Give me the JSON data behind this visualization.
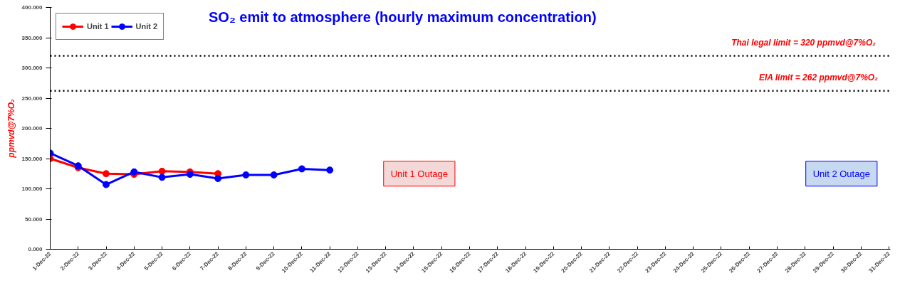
{
  "chart_data": {
    "type": "line",
    "title": "SO₂ emit to atmosphere (hourly maximum concentration)",
    "ylabel": "ppmvd@7%O₂",
    "categories": [
      "1-Dec-22",
      "2-Dec-22",
      "3-Dec-22",
      "4-Dec-22",
      "5-Dec-22",
      "6-Dec-22",
      "7-Dec-22",
      "8-Dec-22",
      "9-Dec-22",
      "10-Dec-22",
      "11-Dec-22",
      "12-Dec-22",
      "13-Dec-22",
      "14-Dec-22",
      "15-Dec-22",
      "16-Dec-22",
      "17-Dec-22",
      "18-Dec-22",
      "19-Dec-22",
      "20-Dec-22",
      "21-Dec-22",
      "22-Dec-22",
      "23-Dec-22",
      "24-Dec-22",
      "25-Dec-22",
      "26-Dec-22",
      "27-Dec-22",
      "28-Dec-22",
      "29-Dec-22",
      "30-Dec-22",
      "31-Dec-22"
    ],
    "series": [
      {
        "name": "Unit 1",
        "color": "#ff0000",
        "values": [
          150,
          135,
          125,
          124,
          129,
          128,
          125,
          null,
          null,
          null,
          null,
          null,
          null,
          null,
          null,
          null,
          null,
          null,
          null,
          null,
          null,
          null,
          null,
          null,
          null,
          null,
          null,
          null,
          null,
          null,
          null
        ]
      },
      {
        "name": "Unit 2",
        "color": "#0000ff",
        "values": [
          159,
          138,
          107,
          128,
          119,
          124,
          117,
          123,
          123,
          133,
          131,
          null,
          null,
          null,
          null,
          null,
          null,
          null,
          null,
          null,
          null,
          null,
          null,
          null,
          null,
          null,
          null,
          null,
          null,
          null,
          null
        ]
      }
    ],
    "ylim": [
      0,
      400
    ],
    "yticks": [
      {
        "value": 0,
        "label": "0.000"
      },
      {
        "value": 50,
        "label": "50.000"
      },
      {
        "value": 100,
        "label": "100.000"
      },
      {
        "value": 150,
        "label": "150.000"
      },
      {
        "value": 200,
        "label": "200.000"
      },
      {
        "value": 250,
        "label": "250.000"
      },
      {
        "value": 300,
        "label": "300.000"
      },
      {
        "value": 350,
        "label": "350.000"
      },
      {
        "value": 400,
        "label": "400.000"
      }
    ],
    "ref_lines": [
      {
        "axis": "y",
        "value": 320,
        "label": "Thai legal  limit  = 320 ppmvd@7%O₂",
        "color": "#000000",
        "line_style": "dotted"
      },
      {
        "axis": "y",
        "value": 262,
        "label": "EIA limit  = 262 ppmvd@7%O₂",
        "color": "#000000",
        "line_style": "dotted"
      }
    ],
    "annotations": [
      "Unit 1 Outage",
      "Unit 2 Outage"
    ],
    "marker": "circle",
    "line_style": "solid",
    "grid": false,
    "legend": "top left"
  }
}
